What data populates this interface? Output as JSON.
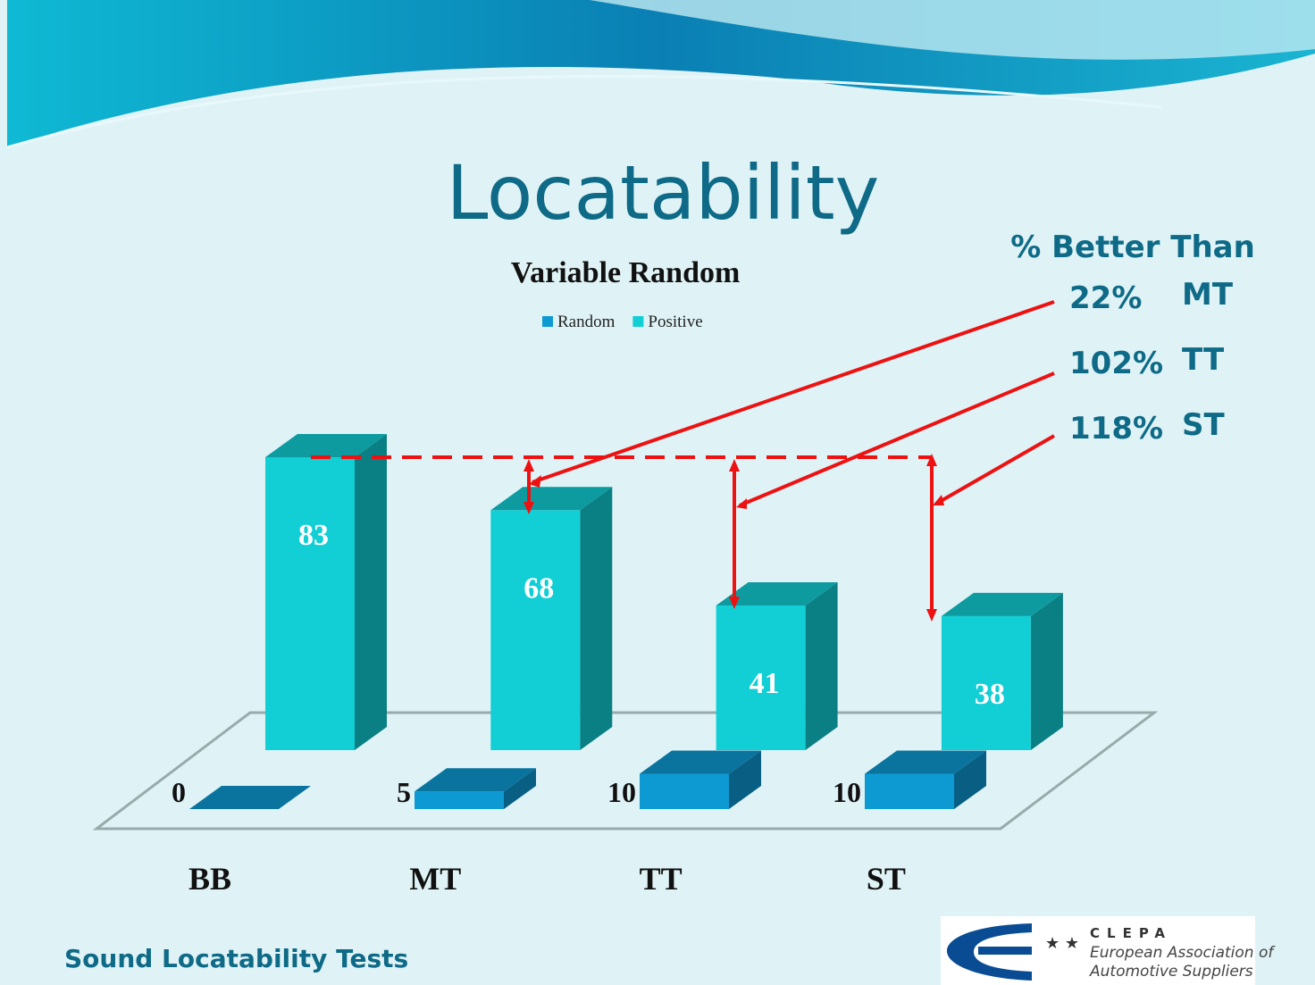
{
  "title": "Locatability",
  "chart_data": {
    "type": "bar3d",
    "title": "Variable Random",
    "categories": [
      "BB",
      "MT",
      "TT",
      "ST"
    ],
    "series": [
      {
        "name": "Random",
        "color": "#0d9ad3",
        "values": [
          0,
          5,
          10,
          10
        ]
      },
      {
        "name": "Positive",
        "color": "#12ced5",
        "values": [
          83,
          68,
          41,
          38
        ]
      }
    ],
    "annotations": {
      "header": "% Better Than",
      "items": [
        {
          "text": "22%",
          "label": "MT"
        },
        {
          "text": "102%",
          "label": "TT"
        },
        {
          "text": "118%",
          "label": "ST"
        }
      ]
    }
  },
  "footer": "Sound Locatability Tests",
  "logo": {
    "name": "CLEPA",
    "line1": "European Association of",
    "line2": "Automotive Suppliers"
  }
}
